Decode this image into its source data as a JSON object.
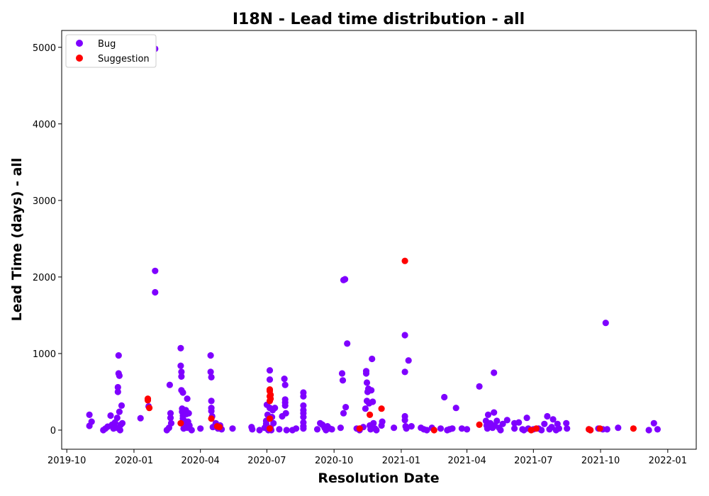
{
  "chart_data": {
    "type": "scatter",
    "title": "I18N - Lead time distribution - all",
    "xlabel": "Resolution Date",
    "ylabel": "Lead Time (days) - all",
    "xlim": [
      "2019-09-24",
      "2022-02-09"
    ],
    "ylim": [
      -250,
      5220
    ],
    "xticks": [
      "2019-10",
      "2020-01",
      "2020-04",
      "2020-07",
      "2020-10",
      "2021-01",
      "2021-04",
      "2021-07",
      "2021-10",
      "2022-01"
    ],
    "xtick_dates": [
      "2019-10-01",
      "2020-01-01",
      "2020-04-01",
      "2020-07-01",
      "2020-10-01",
      "2021-01-01",
      "2021-04-01",
      "2021-07-01",
      "2021-10-01",
      "2022-01-01"
    ],
    "yticks": [
      0,
      1000,
      2000,
      3000,
      4000,
      5000
    ],
    "grid": false,
    "legend_position": "top-left",
    "series": [
      {
        "name": "Bug",
        "color": "#7f00ff",
        "points": [
          [
            "2019-11-01",
            200
          ],
          [
            "2019-11-01",
            55
          ],
          [
            "2019-11-04",
            110
          ],
          [
            "2019-11-20",
            0
          ],
          [
            "2019-11-23",
            20
          ],
          [
            "2019-11-26",
            45
          ],
          [
            "2019-11-30",
            190
          ],
          [
            "2019-12-02",
            70
          ],
          [
            "2019-12-04",
            20
          ],
          [
            "2019-12-06",
            100
          ],
          [
            "2019-12-08",
            30
          ],
          [
            "2019-12-09",
            160
          ],
          [
            "2019-12-10",
            560
          ],
          [
            "2019-12-10",
            500
          ],
          [
            "2019-12-11",
            975
          ],
          [
            "2019-12-11",
            740
          ],
          [
            "2019-12-12",
            710
          ],
          [
            "2019-12-12",
            240
          ],
          [
            "2019-12-13",
            0
          ],
          [
            "2019-12-14",
            70
          ],
          [
            "2019-12-15",
            320
          ],
          [
            "2019-12-16",
            90
          ],
          [
            "2020-01-10",
            155
          ],
          [
            "2020-01-21",
            310
          ],
          [
            "2020-01-30",
            4980
          ],
          [
            "2020-01-30",
            2080
          ],
          [
            "2020-01-30",
            1800
          ],
          [
            "2020-02-15",
            0
          ],
          [
            "2020-02-18",
            30
          ],
          [
            "2020-02-19",
            590
          ],
          [
            "2020-02-20",
            220
          ],
          [
            "2020-02-20",
            160
          ],
          [
            "2020-02-21",
            90
          ],
          [
            "2020-03-05",
            1070
          ],
          [
            "2020-03-05",
            840
          ],
          [
            "2020-03-06",
            760
          ],
          [
            "2020-03-06",
            700
          ],
          [
            "2020-03-06",
            520
          ],
          [
            "2020-03-07",
            280
          ],
          [
            "2020-03-07",
            240
          ],
          [
            "2020-03-08",
            490
          ],
          [
            "2020-03-08",
            190
          ],
          [
            "2020-03-08",
            150
          ],
          [
            "2020-03-09",
            20
          ],
          [
            "2020-03-10",
            120
          ],
          [
            "2020-03-11",
            60
          ],
          [
            "2020-03-12",
            260
          ],
          [
            "2020-03-13",
            210
          ],
          [
            "2020-03-14",
            410
          ],
          [
            "2020-03-14",
            30
          ],
          [
            "2020-03-15",
            110
          ],
          [
            "2020-03-16",
            220
          ],
          [
            "2020-03-17",
            60
          ],
          [
            "2020-03-20",
            0
          ],
          [
            "2020-04-01",
            20
          ],
          [
            "2020-04-15",
            975
          ],
          [
            "2020-04-15",
            760
          ],
          [
            "2020-04-16",
            690
          ],
          [
            "2020-04-16",
            380
          ],
          [
            "2020-04-16",
            290
          ],
          [
            "2020-04-16",
            250
          ],
          [
            "2020-04-17",
            180
          ],
          [
            "2020-04-18",
            40
          ],
          [
            "2020-04-22",
            90
          ],
          [
            "2020-04-25",
            20
          ],
          [
            "2020-04-28",
            60
          ],
          [
            "2020-04-30",
            10
          ],
          [
            "2020-05-15",
            20
          ],
          [
            "2020-06-10",
            40
          ],
          [
            "2020-06-11",
            10
          ],
          [
            "2020-06-21",
            0
          ],
          [
            "2020-06-28",
            30
          ],
          [
            "2020-06-30",
            80
          ],
          [
            "2020-06-30",
            120
          ],
          [
            "2020-07-01",
            330
          ],
          [
            "2020-07-02",
            200
          ],
          [
            "2020-07-03",
            0
          ],
          [
            "2020-07-05",
            780
          ],
          [
            "2020-07-05",
            660
          ],
          [
            "2020-07-05",
            290
          ],
          [
            "2020-07-06",
            30
          ],
          [
            "2020-07-07",
            0
          ],
          [
            "2020-07-08",
            170
          ],
          [
            "2020-07-09",
            260
          ],
          [
            "2020-07-10",
            90
          ],
          [
            "2020-07-12",
            290
          ],
          [
            "2020-07-18",
            10
          ],
          [
            "2020-07-22",
            180
          ],
          [
            "2020-07-25",
            670
          ],
          [
            "2020-07-26",
            590
          ],
          [
            "2020-07-26",
            400
          ],
          [
            "2020-07-26",
            360
          ],
          [
            "2020-07-26",
            320
          ],
          [
            "2020-07-27",
            220
          ],
          [
            "2020-07-28",
            0
          ],
          [
            "2020-08-05",
            0
          ],
          [
            "2020-08-10",
            20
          ],
          [
            "2020-08-20",
            490
          ],
          [
            "2020-08-20",
            440
          ],
          [
            "2020-08-20",
            320
          ],
          [
            "2020-08-20",
            260
          ],
          [
            "2020-08-20",
            220
          ],
          [
            "2020-08-20",
            170
          ],
          [
            "2020-08-20",
            100
          ],
          [
            "2020-08-20",
            50
          ],
          [
            "2020-08-20",
            20
          ],
          [
            "2020-09-08",
            10
          ],
          [
            "2020-09-12",
            90
          ],
          [
            "2020-09-15",
            70
          ],
          [
            "2020-09-18",
            30
          ],
          [
            "2020-09-20",
            0
          ],
          [
            "2020-09-22",
            50
          ],
          [
            "2020-09-25",
            20
          ],
          [
            "2020-09-28",
            10
          ],
          [
            "2020-10-10",
            30
          ],
          [
            "2020-10-12",
            740
          ],
          [
            "2020-10-13",
            650
          ],
          [
            "2020-10-14",
            1960
          ],
          [
            "2020-10-14",
            220
          ],
          [
            "2020-10-16",
            1970
          ],
          [
            "2020-10-17",
            300
          ],
          [
            "2020-10-19",
            1130
          ],
          [
            "2020-11-01",
            20
          ],
          [
            "2020-11-05",
            0
          ],
          [
            "2020-11-10",
            40
          ],
          [
            "2020-11-13",
            280
          ],
          [
            "2020-11-14",
            740
          ],
          [
            "2020-11-14",
            770
          ],
          [
            "2020-11-15",
            620
          ],
          [
            "2020-11-15",
            380
          ],
          [
            "2020-11-16",
            500
          ],
          [
            "2020-11-17",
            540
          ],
          [
            "2020-11-18",
            350
          ],
          [
            "2020-11-19",
            60
          ],
          [
            "2020-11-20",
            10
          ],
          [
            "2020-11-21",
            520
          ],
          [
            "2020-11-22",
            930
          ],
          [
            "2020-11-23",
            370
          ],
          [
            "2020-11-24",
            90
          ],
          [
            "2020-11-26",
            20
          ],
          [
            "2020-11-28",
            0
          ],
          [
            "2020-12-05",
            60
          ],
          [
            "2020-12-06",
            110
          ],
          [
            "2020-12-22",
            30
          ],
          [
            "2021-01-06",
            1240
          ],
          [
            "2021-01-06",
            760
          ],
          [
            "2021-01-06",
            180
          ],
          [
            "2021-01-06",
            130
          ],
          [
            "2021-01-07",
            50
          ],
          [
            "2021-01-08",
            20
          ],
          [
            "2021-01-11",
            910
          ],
          [
            "2021-01-15",
            50
          ],
          [
            "2021-01-28",
            30
          ],
          [
            "2021-02-01",
            10
          ],
          [
            "2021-02-05",
            0
          ],
          [
            "2021-02-12",
            30
          ],
          [
            "2021-02-24",
            20
          ],
          [
            "2021-03-01",
            430
          ],
          [
            "2021-03-05",
            0
          ],
          [
            "2021-03-08",
            10
          ],
          [
            "2021-03-12",
            20
          ],
          [
            "2021-03-17",
            290
          ],
          [
            "2021-03-25",
            20
          ],
          [
            "2021-04-01",
            10
          ],
          [
            "2021-04-18",
            570
          ],
          [
            "2021-04-27",
            120
          ],
          [
            "2021-04-28",
            60
          ],
          [
            "2021-04-29",
            20
          ],
          [
            "2021-04-30",
            200
          ],
          [
            "2021-05-03",
            90
          ],
          [
            "2021-05-06",
            30
          ],
          [
            "2021-05-08",
            750
          ],
          [
            "2021-05-08",
            230
          ],
          [
            "2021-05-09",
            60
          ],
          [
            "2021-05-12",
            120
          ],
          [
            "2021-05-15",
            30
          ],
          [
            "2021-05-17",
            0
          ],
          [
            "2021-05-20",
            80
          ],
          [
            "2021-05-26",
            130
          ],
          [
            "2021-06-05",
            90
          ],
          [
            "2021-06-05",
            20
          ],
          [
            "2021-06-11",
            100
          ],
          [
            "2021-06-16",
            10
          ],
          [
            "2021-06-18",
            0
          ],
          [
            "2021-06-22",
            160
          ],
          [
            "2021-06-24",
            20
          ],
          [
            "2021-07-01",
            10
          ],
          [
            "2021-07-08",
            20
          ],
          [
            "2021-07-12",
            0
          ],
          [
            "2021-07-16",
            80
          ],
          [
            "2021-07-20",
            180
          ],
          [
            "2021-07-23",
            10
          ],
          [
            "2021-07-26",
            40
          ],
          [
            "2021-07-28",
            140
          ],
          [
            "2021-08-01",
            0
          ],
          [
            "2021-08-03",
            80
          ],
          [
            "2021-08-05",
            20
          ],
          [
            "2021-08-15",
            90
          ],
          [
            "2021-08-16",
            20
          ],
          [
            "2021-09-15",
            10
          ],
          [
            "2021-09-17",
            0
          ],
          [
            "2021-09-28",
            20
          ],
          [
            "2021-10-04",
            10
          ],
          [
            "2021-10-08",
            1400
          ],
          [
            "2021-10-10",
            10
          ],
          [
            "2021-10-25",
            30
          ],
          [
            "2021-12-06",
            0
          ],
          [
            "2021-12-13",
            90
          ],
          [
            "2021-12-18",
            10
          ]
        ]
      },
      {
        "name": "Suggestion",
        "color": "#ff0000",
        "points": [
          [
            "2020-01-20",
            410
          ],
          [
            "2020-01-20",
            390
          ],
          [
            "2020-01-22",
            290
          ],
          [
            "2020-03-05",
            90
          ],
          [
            "2020-04-16",
            150
          ],
          [
            "2020-04-24",
            50
          ],
          [
            "2020-04-27",
            40
          ],
          [
            "2020-07-05",
            530
          ],
          [
            "2020-07-05",
            510
          ],
          [
            "2020-07-05",
            440
          ],
          [
            "2020-07-05",
            380
          ],
          [
            "2020-07-05",
            150
          ],
          [
            "2020-07-05",
            20
          ],
          [
            "2020-07-06",
            460
          ],
          [
            "2020-07-06",
            410
          ],
          [
            "2020-11-05",
            20
          ],
          [
            "2020-11-19",
            200
          ],
          [
            "2020-12-05",
            280
          ],
          [
            "2021-01-06",
            2210
          ],
          [
            "2021-02-15",
            0
          ],
          [
            "2021-04-18",
            70
          ],
          [
            "2021-06-28",
            0
          ],
          [
            "2021-07-05",
            20
          ],
          [
            "2021-09-15",
            10
          ],
          [
            "2021-09-17",
            0
          ],
          [
            "2021-09-30",
            20
          ],
          [
            "2021-11-15",
            20
          ]
        ]
      }
    ]
  }
}
